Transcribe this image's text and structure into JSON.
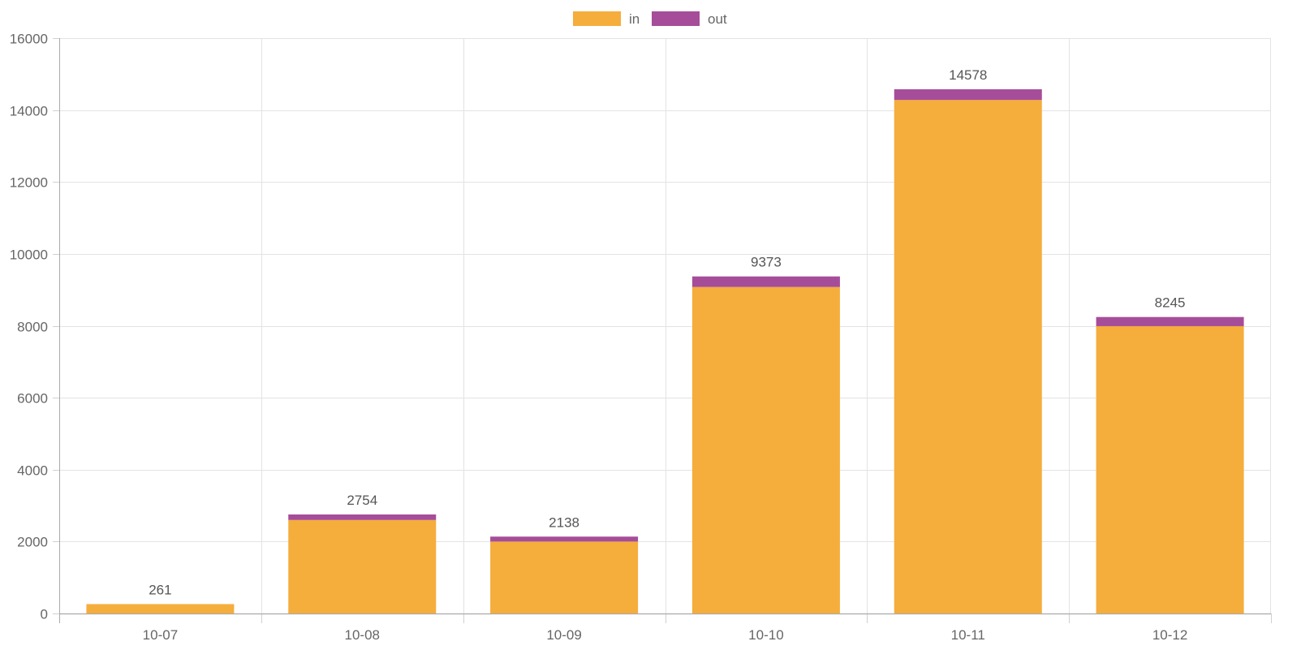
{
  "chart_data": {
    "type": "bar",
    "stacked": true,
    "title": "",
    "xlabel": "",
    "ylabel": "",
    "categories": [
      "10-07",
      "10-08",
      "10-09",
      "10-10",
      "10-11",
      "10-12"
    ],
    "series": [
      {
        "name": "in",
        "color": "#f5ad3c",
        "values": [
          261,
          2600,
          2000,
          9080,
          14280,
          7990
        ]
      },
      {
        "name": "out",
        "color": "#a64d99",
        "values": [
          0,
          154,
          138,
          293,
          298,
          255
        ]
      }
    ],
    "totals": [
      261,
      2754,
      2138,
      9373,
      14578,
      8245
    ],
    "ylim": [
      0,
      16000
    ],
    "yticks": [
      0,
      2000,
      4000,
      6000,
      8000,
      10000,
      12000,
      14000,
      16000
    ],
    "legend_position": "top-center",
    "grid": true
  }
}
